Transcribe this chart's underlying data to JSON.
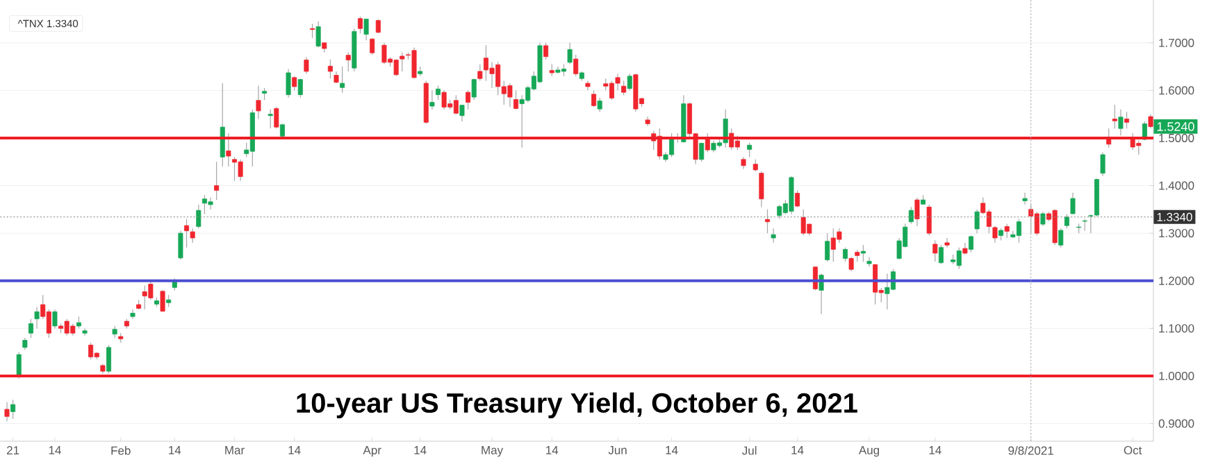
{
  "chart_data": {
    "type": "candlestick",
    "title": "10-year US Treasury Yield, October 6, 2021",
    "annotations": [
      "^TNX 1.3340",
      {
        "text": "1.5240",
        "y": 1.524
      }
    ],
    "categories": [
      null,
      "21",
      null,
      null,
      null,
      null,
      null,
      null,
      "14",
      null,
      null,
      null,
      null,
      null,
      null,
      null,
      null,
      null,
      null,
      "Feb",
      null,
      null,
      null,
      null,
      null,
      null,
      null,
      null,
      "14",
      null,
      null,
      null,
      null,
      null,
      null,
      null,
      null,
      null,
      "Mar",
      null,
      null,
      null,
      null,
      null,
      null,
      null,
      null,
      null,
      "14",
      null,
      null,
      null,
      null,
      null,
      null,
      null,
      null,
      null,
      null,
      null,
      null,
      "Apr",
      null,
      null,
      null,
      null,
      null,
      null,
      null,
      "14",
      null,
      null,
      null,
      null,
      null,
      null,
      null,
      null,
      null,
      null,
      null,
      "May",
      null,
      null,
      null,
      null,
      null,
      null,
      null,
      null,
      null,
      "14",
      null,
      null,
      null,
      null,
      null,
      null,
      null,
      null,
      null,
      null,
      "Jun",
      null,
      null,
      null,
      null,
      null,
      null,
      null,
      null,
      "14",
      null,
      null,
      null,
      null,
      null,
      null,
      null,
      null,
      null,
      null,
      null,
      null,
      "Jul",
      null,
      null,
      null,
      null,
      null,
      null,
      null,
      "14",
      null,
      null,
      null,
      null,
      null,
      null,
      null,
      null,
      null,
      null,
      null,
      "Aug",
      null,
      null,
      null,
      null,
      null,
      null,
      null,
      null,
      null,
      null,
      "14",
      null,
      null,
      null,
      null,
      null,
      null,
      null,
      null,
      null,
      null,
      null,
      null,
      null,
      null,
      null,
      "9/8/2021",
      null,
      null,
      null,
      null,
      null,
      null,
      null,
      null,
      null,
      null,
      null,
      null,
      null,
      null,
      null,
      null,
      "Oct",
      null,
      null,
      null
    ],
    "ohlc": [
      [
        0.93,
        0.945,
        0.905,
        0.915
      ],
      [
        0.925,
        0.95,
        0.91,
        0.94
      ],
      [
        1.0,
        1.05,
        0.995,
        1.045
      ],
      [
        1.06,
        1.08,
        1.055,
        1.075
      ],
      [
        1.09,
        1.12,
        1.08,
        1.11
      ],
      [
        1.12,
        1.145,
        1.1,
        1.135
      ],
      [
        1.15,
        1.17,
        1.12,
        1.125
      ],
      [
        1.135,
        1.14,
        1.08,
        1.09
      ],
      [
        1.105,
        1.14,
        1.1,
        1.135
      ],
      [
        1.105,
        1.11,
        1.09,
        1.1
      ],
      [
        1.115,
        1.12,
        1.085,
        1.09
      ],
      [
        1.105,
        1.11,
        1.085,
        1.09
      ],
      [
        1.105,
        1.125,
        1.1,
        1.112
      ],
      [
        1.09,
        1.1,
        1.085,
        1.095
      ],
      [
        1.065,
        1.07,
        1.035,
        1.04
      ],
      [
        1.048,
        1.05,
        1.035,
        1.04
      ],
      [
        1.022,
        1.025,
        1.005,
        1.01
      ],
      [
        1.01,
        1.065,
        1.005,
        1.06
      ],
      [
        1.088,
        1.105,
        1.08,
        1.098
      ],
      [
        1.083,
        1.09,
        1.07,
        1.078
      ],
      [
        1.115,
        1.12,
        1.1,
        1.105
      ],
      [
        1.125,
        1.14,
        1.12,
        1.132
      ],
      [
        1.15,
        1.16,
        1.14,
        1.142
      ],
      [
        1.177,
        1.19,
        1.14,
        1.168
      ],
      [
        1.193,
        1.2,
        1.16,
        1.164
      ],
      [
        1.151,
        1.165,
        1.145,
        1.158
      ],
      [
        1.178,
        1.18,
        1.135,
        1.136
      ],
      [
        1.154,
        1.17,
        1.145,
        1.16
      ],
      [
        1.186,
        1.205,
        1.18,
        1.2
      ],
      [
        1.248,
        1.305,
        1.245,
        1.3
      ],
      [
        1.316,
        1.33,
        1.27,
        1.305
      ],
      [
        1.303,
        1.31,
        1.28,
        1.29
      ],
      [
        1.314,
        1.36,
        1.31,
        1.348
      ],
      [
        1.363,
        1.38,
        1.34,
        1.372
      ],
      [
        1.36,
        1.375,
        1.35,
        1.366
      ],
      [
        1.4,
        1.45,
        1.37,
        1.39
      ],
      [
        1.46,
        1.615,
        1.44,
        1.523
      ],
      [
        1.473,
        1.51,
        1.44,
        1.462
      ],
      [
        1.455,
        1.46,
        1.41,
        1.449
      ],
      [
        1.45,
        1.455,
        1.41,
        1.419
      ],
      [
        1.467,
        1.49,
        1.46,
        1.475
      ],
      [
        1.472,
        1.56,
        1.44,
        1.553
      ],
      [
        1.579,
        1.61,
        1.54,
        1.557
      ],
      [
        1.594,
        1.605,
        1.58,
        1.598
      ],
      [
        1.547,
        1.56,
        1.52,
        1.55
      ],
      [
        1.562,
        1.565,
        1.52,
        1.523
      ],
      [
        1.504,
        1.53,
        1.5,
        1.528
      ],
      [
        1.591,
        1.645,
        1.585,
        1.637
      ],
      [
        1.627,
        1.63,
        1.6,
        1.608
      ],
      [
        1.591,
        1.625,
        1.585,
        1.623
      ],
      [
        1.664,
        1.67,
        1.635,
        1.64
      ],
      [
        1.73,
        1.74,
        1.71,
        1.728
      ],
      [
        1.693,
        1.745,
        1.69,
        1.734
      ],
      [
        1.7,
        1.7,
        1.68,
        1.688
      ],
      [
        1.651,
        1.665,
        1.625,
        1.64
      ],
      [
        1.632,
        1.64,
        1.615,
        1.617
      ],
      [
        1.606,
        1.65,
        1.595,
        1.615
      ],
      [
        1.674,
        1.68,
        1.64,
        1.664
      ],
      [
        1.647,
        1.73,
        1.64,
        1.724
      ],
      [
        1.751,
        1.755,
        1.72,
        1.73
      ],
      [
        1.718,
        1.75,
        1.705,
        1.75
      ],
      [
        1.708,
        1.71,
        1.675,
        1.679
      ],
      [
        1.747,
        1.75,
        1.72,
        1.722
      ],
      [
        1.695,
        1.7,
        1.655,
        1.659
      ],
      [
        1.666,
        1.67,
        1.65,
        1.659
      ],
      [
        1.664,
        1.665,
        1.63,
        1.633
      ],
      [
        1.672,
        1.68,
        1.64,
        1.666
      ],
      [
        1.675,
        1.68,
        1.665,
        1.674
      ],
      [
        1.684,
        1.69,
        1.625,
        1.627
      ],
      [
        1.635,
        1.65,
        1.63,
        1.64
      ],
      [
        1.615,
        1.62,
        1.53,
        1.533
      ],
      [
        1.567,
        1.6,
        1.56,
        1.575
      ],
      [
        1.591,
        1.61,
        1.58,
        1.603
      ],
      [
        1.596,
        1.6,
        1.56,
        1.565
      ],
      [
        1.572,
        1.58,
        1.56,
        1.565
      ],
      [
        1.579,
        1.59,
        1.55,
        1.552
      ],
      [
        1.547,
        1.57,
        1.535,
        1.569
      ],
      [
        1.596,
        1.6,
        1.56,
        1.575
      ],
      [
        1.586,
        1.625,
        1.58,
        1.623
      ],
      [
        1.64,
        1.655,
        1.62,
        1.625
      ],
      [
        1.668,
        1.695,
        1.62,
        1.643
      ],
      [
        1.647,
        1.66,
        1.605,
        1.635
      ],
      [
        1.654,
        1.66,
        1.59,
        1.608
      ],
      [
        1.608,
        1.62,
        1.57,
        1.593
      ],
      [
        1.61,
        1.615,
        1.565,
        1.586
      ],
      [
        1.581,
        1.6,
        1.56,
        1.562
      ],
      [
        1.572,
        1.59,
        1.48,
        1.581
      ],
      [
        1.579,
        1.61,
        1.575,
        1.606
      ],
      [
        1.603,
        1.64,
        1.6,
        1.63
      ],
      [
        1.618,
        1.7,
        1.615,
        1.694
      ],
      [
        1.694,
        1.7,
        1.665,
        1.671
      ],
      [
        1.642,
        1.655,
        1.63,
        1.637
      ],
      [
        1.638,
        1.65,
        1.635,
        1.643
      ],
      [
        1.64,
        1.655,
        1.63,
        1.645
      ],
      [
        1.659,
        1.7,
        1.655,
        1.686
      ],
      [
        1.666,
        1.675,
        1.63,
        1.635
      ],
      [
        1.625,
        1.64,
        1.62,
        1.637
      ],
      [
        1.615,
        1.62,
        1.6,
        1.608
      ],
      [
        1.592,
        1.6,
        1.565,
        1.568
      ],
      [
        1.561,
        1.585,
        1.555,
        1.578
      ],
      [
        1.614,
        1.625,
        1.6,
        1.609
      ],
      [
        1.615,
        1.62,
        1.58,
        1.584
      ],
      [
        1.627,
        1.635,
        1.6,
        1.615
      ],
      [
        1.609,
        1.62,
        1.59,
        1.596
      ],
      [
        1.604,
        1.635,
        1.6,
        1.63
      ],
      [
        1.633,
        1.635,
        1.555,
        1.561
      ],
      [
        1.583,
        1.585,
        1.565,
        1.572
      ],
      [
        1.538,
        1.545,
        1.525,
        1.53
      ],
      [
        1.509,
        1.515,
        1.475,
        1.494
      ],
      [
        1.504,
        1.52,
        1.455,
        1.462
      ],
      [
        1.455,
        1.47,
        1.45,
        1.465
      ],
      [
        1.465,
        1.51,
        1.46,
        1.499
      ],
      [
        1.498,
        1.51,
        1.49,
        1.5
      ],
      [
        1.492,
        1.59,
        1.49,
        1.572
      ],
      [
        1.572,
        1.575,
        1.5,
        1.509
      ],
      [
        1.509,
        1.51,
        1.445,
        1.455
      ],
      [
        1.455,
        1.49,
        1.45,
        1.489
      ],
      [
        1.499,
        1.51,
        1.47,
        1.475
      ],
      [
        1.475,
        1.495,
        1.47,
        1.489
      ],
      [
        1.484,
        1.5,
        1.48,
        1.49
      ],
      [
        1.49,
        1.56,
        1.48,
        1.54
      ],
      [
        1.51,
        1.52,
        1.475,
        1.481
      ],
      [
        1.494,
        1.505,
        1.475,
        1.481
      ],
      [
        1.455,
        1.46,
        1.435,
        1.442
      ],
      [
        1.476,
        1.49,
        1.46,
        1.485
      ],
      [
        1.445,
        1.455,
        1.43,
        1.433
      ],
      [
        1.426,
        1.43,
        1.355,
        1.372
      ],
      [
        1.329,
        1.35,
        1.3,
        1.324
      ],
      [
        1.29,
        1.31,
        1.28,
        1.297
      ],
      [
        1.337,
        1.36,
        1.33,
        1.356
      ],
      [
        1.343,
        1.37,
        1.34,
        1.362
      ],
      [
        1.346,
        1.42,
        1.34,
        1.417
      ],
      [
        1.384,
        1.39,
        1.355,
        1.357
      ],
      [
        1.333,
        1.35,
        1.295,
        1.3
      ],
      [
        1.319,
        1.32,
        1.295,
        1.3
      ],
      [
        1.229,
        1.23,
        1.18,
        1.183
      ],
      [
        1.18,
        1.215,
        1.13,
        1.212
      ],
      [
        1.244,
        1.3,
        1.24,
        1.283
      ],
      [
        1.29,
        1.31,
        1.24,
        1.266
      ],
      [
        1.303,
        1.31,
        1.28,
        1.287
      ],
      [
        1.247,
        1.27,
        1.24,
        1.266
      ],
      [
        1.247,
        1.25,
        1.22,
        1.224
      ],
      [
        1.26,
        1.265,
        1.24,
        1.253
      ],
      [
        1.258,
        1.275,
        1.24,
        1.262
      ],
      [
        1.236,
        1.25,
        1.23,
        1.241
      ],
      [
        1.234,
        1.235,
        1.15,
        1.176
      ],
      [
        1.18,
        1.185,
        1.155,
        1.175
      ],
      [
        1.173,
        1.215,
        1.14,
        1.186
      ],
      [
        1.182,
        1.225,
        1.18,
        1.219
      ],
      [
        1.247,
        1.29,
        1.245,
        1.284
      ],
      [
        1.272,
        1.32,
        1.27,
        1.313
      ],
      [
        1.324,
        1.355,
        1.32,
        1.348
      ],
      [
        1.37,
        1.375,
        1.315,
        1.33
      ],
      [
        1.361,
        1.38,
        1.36,
        1.37
      ],
      [
        1.355,
        1.36,
        1.295,
        1.3
      ],
      [
        1.277,
        1.285,
        1.24,
        1.258
      ],
      [
        1.238,
        1.275,
        1.235,
        1.27
      ],
      [
        1.28,
        1.29,
        1.27,
        1.275
      ],
      [
        1.24,
        1.255,
        1.235,
        1.244
      ],
      [
        1.232,
        1.27,
        1.225,
        1.263
      ],
      [
        1.268,
        1.28,
        1.255,
        1.258
      ],
      [
        1.266,
        1.295,
        1.26,
        1.293
      ],
      [
        1.309,
        1.35,
        1.3,
        1.345
      ],
      [
        1.363,
        1.375,
        1.34,
        1.343
      ],
      [
        1.345,
        1.35,
        1.3,
        1.314
      ],
      [
        1.312,
        1.315,
        1.28,
        1.29
      ],
      [
        1.295,
        1.31,
        1.285,
        1.306
      ],
      [
        1.314,
        1.32,
        1.29,
        1.304
      ],
      [
        1.292,
        1.305,
        1.29,
        1.297
      ],
      [
        1.295,
        1.33,
        1.28,
        1.324
      ],
      [
        1.368,
        1.385,
        1.36,
        1.373
      ],
      [
        1.35,
        1.36,
        1.3,
        1.336
      ],
      [
        1.341,
        1.345,
        1.295,
        1.3
      ],
      [
        1.319,
        1.345,
        1.315,
        1.341
      ],
      [
        1.341,
        1.345,
        1.325,
        1.329
      ],
      [
        1.348,
        1.35,
        1.275,
        1.28
      ],
      [
        1.275,
        1.31,
        1.27,
        1.306
      ],
      [
        1.316,
        1.34,
        1.31,
        1.334
      ],
      [
        1.341,
        1.385,
        1.34,
        1.373
      ],
      [
        1.312,
        1.32,
        1.3,
        1.313
      ],
      [
        1.325,
        1.33,
        1.305,
        1.326
      ],
      [
        1.336,
        1.34,
        1.3,
        1.337
      ],
      [
        1.338,
        1.415,
        1.335,
        1.413
      ],
      [
        1.426,
        1.47,
        1.42,
        1.465
      ],
      [
        1.499,
        1.52,
        1.48,
        1.487
      ],
      [
        1.54,
        1.57,
        1.52,
        1.536
      ],
      [
        1.52,
        1.56,
        1.505,
        1.544
      ],
      [
        1.54,
        1.555,
        1.52,
        1.533
      ],
      [
        1.501,
        1.51,
        1.475,
        1.481
      ],
      [
        1.489,
        1.495,
        1.465,
        1.484
      ],
      [
        1.497,
        1.535,
        1.495,
        1.53
      ],
      [
        1.545,
        1.55,
        1.52,
        1.524
      ]
    ],
    "ylim": [
      0.863,
      1.79
    ],
    "yticks": [
      {
        "value": 0.9,
        "label": "0.9000"
      },
      {
        "value": 1.0,
        "label": "1.0000"
      },
      {
        "value": 1.1,
        "label": "1.1000"
      },
      {
        "value": 1.2,
        "label": "1.2000"
      },
      {
        "value": 1.3,
        "label": "1.3000"
      },
      {
        "value": 1.4,
        "label": "1.4000"
      },
      {
        "value": 1.5,
        "label": "1.5000"
      },
      {
        "value": 1.6,
        "label": "1.6000"
      },
      {
        "value": 1.7,
        "label": "1.7000"
      }
    ],
    "grid": "y",
    "ref_lines": [
      {
        "axis": "y",
        "value": 1.5,
        "color": "#ee1d25"
      },
      {
        "axis": "y",
        "value": 1.2,
        "color": "#4b4fd0"
      },
      {
        "axis": "y",
        "value": 1.0,
        "color": "#f01e28"
      },
      {
        "axis": "y",
        "value": 1.334,
        "label": "1.3340",
        "color": "#8c8c8c",
        "line_style": "dotted"
      },
      {
        "axis": "x",
        "value": "9/8/2021",
        "color": "#a6a6a6",
        "line_style": "dotted"
      }
    ]
  }
}
